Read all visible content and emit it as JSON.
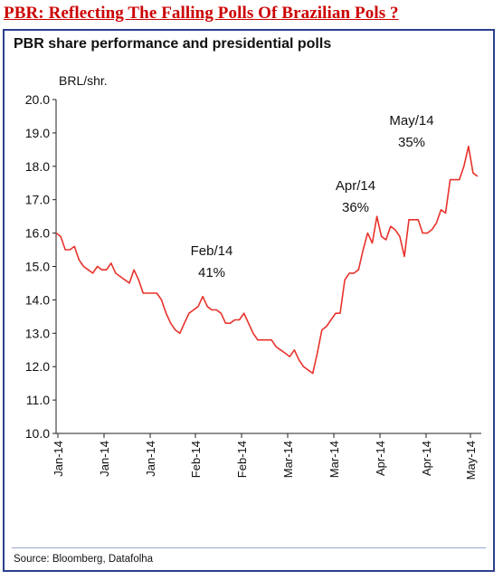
{
  "headline": "PBR:  Reflecting The Falling Polls Of Brazilian Pols ?",
  "source": "Source: Bloomberg, Datafolha",
  "colors": {
    "line": "#e8322b",
    "headline": "#cc0000",
    "frame": "#2b3f8f"
  },
  "chart_data": {
    "type": "line",
    "title": "PBR share performance and presidential polls",
    "ylabel": "BRL/shr.",
    "ylim": [
      10.0,
      20.0
    ],
    "yticks": [
      "10.0",
      "11.0",
      "12.0",
      "13.0",
      "14.0",
      "15.0",
      "16.0",
      "17.0",
      "18.0",
      "19.0",
      "20.0"
    ],
    "xticks": [
      "Jan-14",
      "Jan-14",
      "Jan-14",
      "Feb-14",
      "Feb-14",
      "Mar-14",
      "Mar-14",
      "Apr-14",
      "Apr-14",
      "May-14"
    ],
    "grid": false,
    "series": [
      {
        "values": [
          16.0,
          15.9,
          15.5,
          15.5,
          15.6,
          15.2,
          15.0,
          14.9,
          14.8,
          15.0,
          14.9,
          14.9,
          15.1,
          14.8,
          14.7,
          14.6,
          14.5,
          14.9,
          14.6,
          14.2,
          14.2,
          14.2,
          14.2,
          14.0,
          13.6,
          13.3,
          13.1,
          13.0,
          13.3,
          13.6,
          13.7,
          13.8,
          14.1,
          13.8,
          13.7,
          13.7,
          13.6,
          13.3,
          13.3,
          13.4,
          13.4,
          13.6,
          13.3,
          13.0,
          12.8,
          12.8,
          12.8,
          12.8,
          12.6,
          12.5,
          12.4,
          12.3,
          12.5,
          12.2,
          12.0,
          11.9,
          11.8,
          12.4,
          13.1,
          13.2,
          13.4,
          13.6,
          13.6,
          14.6,
          14.8,
          14.8,
          14.9,
          15.5,
          16.0,
          15.7,
          16.5,
          15.9,
          15.8,
          16.2,
          16.1,
          15.9,
          15.3,
          16.4,
          16.4,
          16.4,
          16.0,
          16.0,
          16.1,
          16.3,
          16.7,
          16.6,
          17.6,
          17.6,
          17.6,
          18.0,
          18.6,
          17.8,
          17.7
        ]
      }
    ],
    "annotations": [
      {
        "label": "Feb/14",
        "value": "41%",
        "index": 32
      },
      {
        "label": "Apr/14",
        "value": "36%",
        "index": 70
      },
      {
        "label": "May/14",
        "value": "35%",
        "index": 85
      }
    ]
  }
}
